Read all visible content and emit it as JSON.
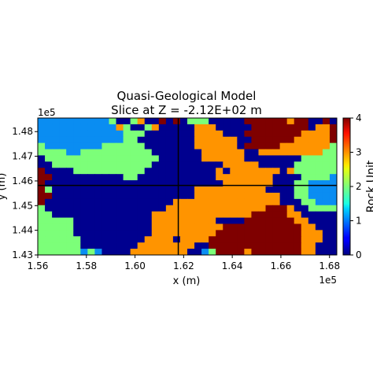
{
  "chart_data": {
    "type": "heatmap",
    "title": "Quasi-Geological Model",
    "subtitle": "Slice at Z = -2.12E+02 m",
    "xlabel": "x (m)",
    "ylabel": "y (m)",
    "x_offset_label": "1e5",
    "y_offset_label": "1e5",
    "xlim": [
      1.56,
      1.683
    ],
    "ylim": [
      1.43,
      1.4855
    ],
    "x_ticks": [
      1.56,
      1.58,
      1.6,
      1.62,
      1.64,
      1.66,
      1.68
    ],
    "x_tick_labels": [
      "1.56",
      "1.58",
      "1.60",
      "1.62",
      "1.64",
      "1.66",
      "1.68"
    ],
    "y_ticks": [
      1.43,
      1.44,
      1.45,
      1.46,
      1.47,
      1.48
    ],
    "y_tick_labels": [
      "1.43",
      "1.44",
      "1.45",
      "1.46",
      "1.47",
      "1.48"
    ],
    "crosshair": {
      "x": 1.6178,
      "y": 1.4582
    },
    "colorbar": {
      "label": "Rock Unit",
      "min": 0,
      "max": 4,
      "ticks": [
        0,
        1,
        2,
        3,
        4
      ],
      "tick_labels": [
        "0",
        "1",
        "2",
        "3",
        "4"
      ],
      "colormap": "jet"
    },
    "grid": {
      "rows": 22,
      "cols": 42,
      "row_order": "top_to_bottom",
      "legend": {
        "0": "dark blue",
        "1": "cyan",
        "2": "light green",
        "3": "orange",
        "4": "dark red"
      },
      "cells": [
        "111111111120023004040222000004444443440040",
        "111111111113200230000033300000444444440334",
        "111111111111222000000033330004444444433334",
        "111111111111220000000033333300444444333334",
        "211111111222222000000033333304444433333332",
        "222211222222222200000003333330033333333322",
        "022222222222222220000003333330000000022222",
        "002222222222222200000000003333300000222222",
        "400002222222222000000000030333333303222222",
        "440000000000220000000000033333333000022221",
        "400000000000000000000000003333333000221111",
        "420000000000000000000033333333330000221111",
        "440000000000000000000033333333333300221111",
        "400000000000000000033333333333333300022111",
        "200000000000000000333333333333334443002222",
        "220000000000000033333333333333444443300000",
        "222220000000000033333333300004444444330000",
        "222220000000000033333333334444444444433000",
        "222220000000000033333333344444444444433300",
        "222222000000000333303333444444444444433300",
        "222222000000003333333300444444444444433000",
        "222222121000033333333001244443444444433000"
      ]
    }
  }
}
